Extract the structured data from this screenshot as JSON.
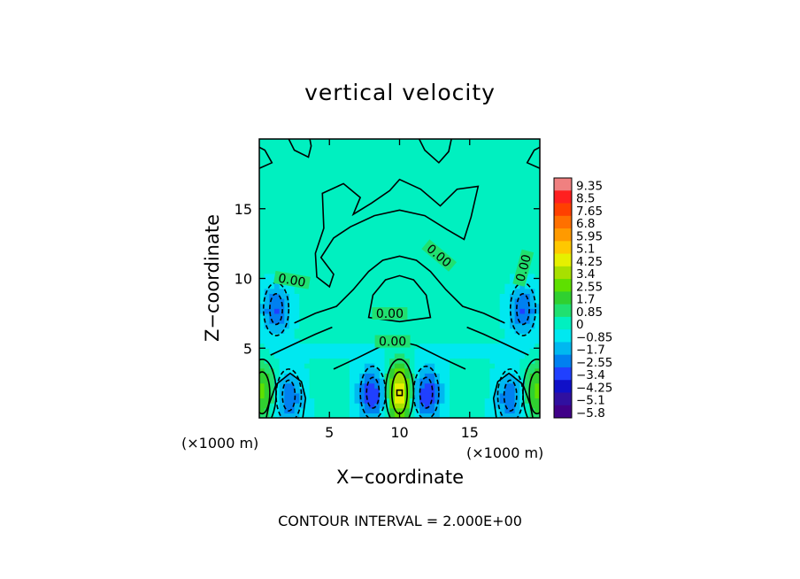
{
  "chart_data": {
    "type": "heatmap",
    "title": "vertical velocity",
    "xlabel": "X−coordinate",
    "ylabel": "Z−coordinate",
    "x_unit_label": "(×1000 m)",
    "x_unit_label_right": "(×1000 m)",
    "xlim": [
      0,
      20
    ],
    "ylim": [
      0,
      20
    ],
    "x_ticks": [
      5,
      10,
      15
    ],
    "x_tick_labels": [
      "5",
      "10",
      "15"
    ],
    "y_ticks": [
      5,
      10,
      15
    ],
    "y_tick_labels": [
      "5",
      "10",
      "15"
    ],
    "contour_interval_text": "CONTOUR INTERVAL = 2.000E+00",
    "contour_labels": [
      {
        "text": "0.00",
        "x": 2.3,
        "z": 9.7,
        "angle": 10
      },
      {
        "text": "0.00",
        "x": 9.3,
        "z": 7.3,
        "angle": 0
      },
      {
        "text": "0.00",
        "x": 9.5,
        "z": 5.3,
        "angle": 0
      },
      {
        "text": "0.00",
        "x": 12.7,
        "z": 11.5,
        "angle": 40
      },
      {
        "text": "0.00",
        "x": 19.0,
        "z": 10.7,
        "angle": -75
      }
    ],
    "colorbar": {
      "levels": [
        9.35,
        8.5,
        7.65,
        6.8,
        5.95,
        5.1,
        4.25,
        3.4,
        2.55,
        1.7,
        0.85,
        0,
        -0.85,
        -1.7,
        -2.55,
        -3.4,
        -4.25,
        -5.1,
        -5.8
      ],
      "labels": [
        "9.35",
        "8.5",
        "7.65",
        "6.8",
        "5.95",
        "5.1",
        "4.25",
        "3.4",
        "2.55",
        "1.7",
        "0.85",
        "0",
        "−0.85",
        "−1.7",
        "−2.55",
        "−3.4",
        "−4.25",
        "−5.1",
        "−5.8"
      ],
      "colors": [
        "#f08080",
        "#ff2020",
        "#ff4000",
        "#ff7000",
        "#ff9a00",
        "#ffc800",
        "#e6f000",
        "#a8e000",
        "#5ee000",
        "#30d030",
        "#20e070",
        "#00f0c0",
        "#00e8f0",
        "#00b8f0",
        "#0080f0",
        "#2040ff",
        "#1010c8",
        "#3010a0",
        "#400088"
      ]
    },
    "features": [
      {
        "kind": "updraft",
        "x": 10.0,
        "z": 1.8,
        "peak": 5.0
      },
      {
        "kind": "downdraft",
        "x": 8.1,
        "z": 1.8,
        "peak": -3.8
      },
      {
        "kind": "downdraft",
        "x": 11.9,
        "z": 1.8,
        "peak": -3.8
      },
      {
        "kind": "downdraft",
        "x": 2.1,
        "z": 1.6,
        "peak": -2.8
      },
      {
        "kind": "downdraft",
        "x": 17.9,
        "z": 1.6,
        "peak": -2.8
      },
      {
        "kind": "downdraft",
        "x": 1.2,
        "z": 7.8,
        "peak": -3.0
      },
      {
        "kind": "downdraft",
        "x": 18.8,
        "z": 7.8,
        "peak": -3.0
      },
      {
        "kind": "updraft",
        "x": 0.2,
        "z": 1.8,
        "peak": 2.5
      },
      {
        "kind": "updraft",
        "x": 19.8,
        "z": 1.8,
        "peak": 2.5
      }
    ]
  }
}
